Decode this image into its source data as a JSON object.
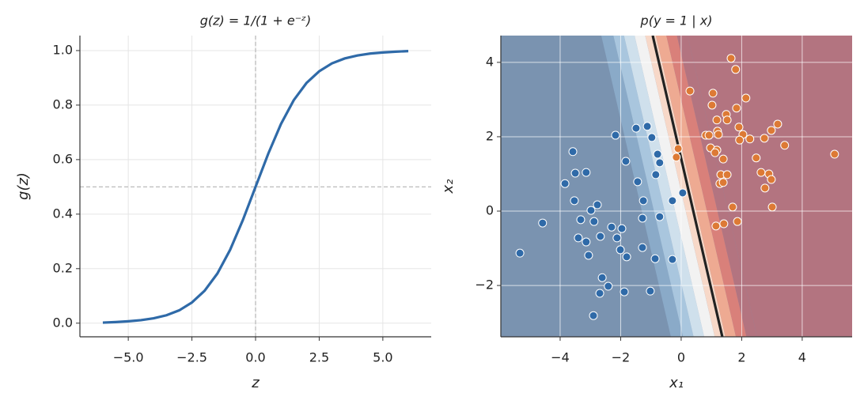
{
  "chart_data": [
    {
      "type": "line",
      "title": "g(z) = 1/(1 + e⁻ᶻ)",
      "xlabel": "z",
      "ylabel": "g(z)",
      "x": [
        -6,
        -5.5,
        -5,
        -4.5,
        -4,
        -3.5,
        -3,
        -2.5,
        -2,
        -1.5,
        -1,
        -0.5,
        0,
        0.5,
        1,
        1.5,
        2,
        2.5,
        3,
        3.5,
        4,
        4.5,
        5,
        5.5,
        6
      ],
      "series": [
        {
          "color": "#2f6aa8",
          "values": [
            0.002,
            0.004,
            0.007,
            0.011,
            0.018,
            0.029,
            0.047,
            0.076,
            0.119,
            0.182,
            0.269,
            0.378,
            0.5,
            0.622,
            0.731,
            0.818,
            0.881,
            0.924,
            0.953,
            0.971,
            0.982,
            0.989,
            0.993,
            0.996,
            0.998
          ]
        }
      ],
      "xlim": [
        -6.9,
        6.9
      ],
      "ylim": [
        -0.05,
        1.055
      ],
      "xticks": [
        {
          "value": -5,
          "label": "−5.0"
        },
        {
          "value": -2.5,
          "label": "−2.5"
        },
        {
          "value": 0,
          "label": "0.0"
        },
        {
          "value": 2.5,
          "label": "2.5"
        },
        {
          "value": 5,
          "label": "5.0"
        }
      ],
      "yticks": [
        {
          "value": 0,
          "label": "0.0"
        },
        {
          "value": 0.2,
          "label": "0.2"
        },
        {
          "value": 0.4,
          "label": "0.4"
        },
        {
          "value": 0.6,
          "label": "0.6"
        },
        {
          "value": 0.8,
          "label": "0.8"
        },
        {
          "value": 1,
          "label": "1.0"
        }
      ],
      "grid": true,
      "reference_lines": {
        "x": 0,
        "y": 0.5
      }
    },
    {
      "type": "scatter",
      "title": "p(y = 1 | x)",
      "xlabel": "x₁",
      "ylabel": "x₂",
      "fill_colors": [
        "#7a93b0",
        "#b37480"
      ],
      "decision_boundary": {
        "x": [
          1.36,
          -0.94
        ],
        "y": [
          -3.38,
          4.72
        ]
      },
      "series": [
        {
          "color": "#2f6aa8",
          "x": [
            -5.33,
            -4.58,
            -3.84,
            -3.58,
            -3.5,
            -3.14,
            -3.53,
            -3.32,
            -3.4,
            -3.14,
            -3.06,
            -2.98,
            -2.88,
            -2.77,
            -2.67,
            -2.61,
            -2.69,
            -2.41,
            -2.9,
            -2.3,
            -2.12,
            -1.96,
            -2.01,
            -1.8,
            -1.88,
            -2.17,
            -1.83,
            -1.49,
            -1.12,
            -0.97,
            -0.78,
            -0.71,
            -0.84,
            -1.44,
            -1.25,
            -1.28,
            -1.28,
            -1.02,
            -0.86,
            -0.71,
            -0.29,
            -0.29,
            0.05
          ],
          "y": [
            -1.13,
            -0.32,
            0.74,
            1.6,
            1.02,
            1.04,
            0.28,
            -0.23,
            -0.72,
            -0.83,
            -1.19,
            0.02,
            -0.28,
            0.17,
            -0.68,
            -1.79,
            -2.21,
            -2.02,
            -2.81,
            -0.43,
            -0.72,
            -0.47,
            -1.04,
            -1.23,
            -2.17,
            2.04,
            1.34,
            2.23,
            2.28,
            1.98,
            1.53,
            1.3,
            0.98,
            0.79,
            0.28,
            -0.19,
            -0.98,
            -2.15,
            -1.28,
            -0.15,
            -1.3,
            0.28,
            0.49
          ]
        },
        {
          "color": "#dd7a35",
          "x": [
            0.29,
            1.65,
            1.8,
            1.05,
            2.14,
            1.02,
            1.83,
            1.49,
            1.18,
            1.52,
            1.91,
            3.19,
            2.98,
            1.2,
            1.23,
            2.04,
            0.81,
            0.92,
            2.27,
            1.93,
            2.75,
            3.42,
            -0.1,
            -0.16,
            0.97,
            1.18,
            1.12,
            1.39,
            2.48,
            5.07,
            2.64,
            1.31,
            1.52,
            2.9,
            2.98,
            1.28,
            1.39,
            2.77,
            1.7,
            3.01,
            1.15,
            1.41,
            1.86
          ],
          "y": [
            3.23,
            4.11,
            3.81,
            3.17,
            3.04,
            2.85,
            2.77,
            2.6,
            2.45,
            2.45,
            2.26,
            2.34,
            2.17,
            2.15,
            2.06,
            2.06,
            2.04,
            2.04,
            1.94,
            1.91,
            1.96,
            1.77,
            1.68,
            1.45,
            1.7,
            1.64,
            1.57,
            1.4,
            1.43,
            1.53,
            1.04,
            0.98,
            0.98,
            1.0,
            0.85,
            0.74,
            0.77,
            0.62,
            0.11,
            0.11,
            -0.4,
            -0.34,
            -0.28
          ]
        }
      ],
      "xlim": [
        -5.96,
        5.65
      ],
      "ylim": [
        -3.38,
        4.72
      ],
      "xticks": [
        {
          "value": -4,
          "label": "−4"
        },
        {
          "value": -2,
          "label": "−2"
        },
        0,
        2,
        4
      ],
      "yticks": [
        {
          "value": -2,
          "label": "−2"
        },
        0,
        2,
        4
      ],
      "grid": true
    }
  ]
}
